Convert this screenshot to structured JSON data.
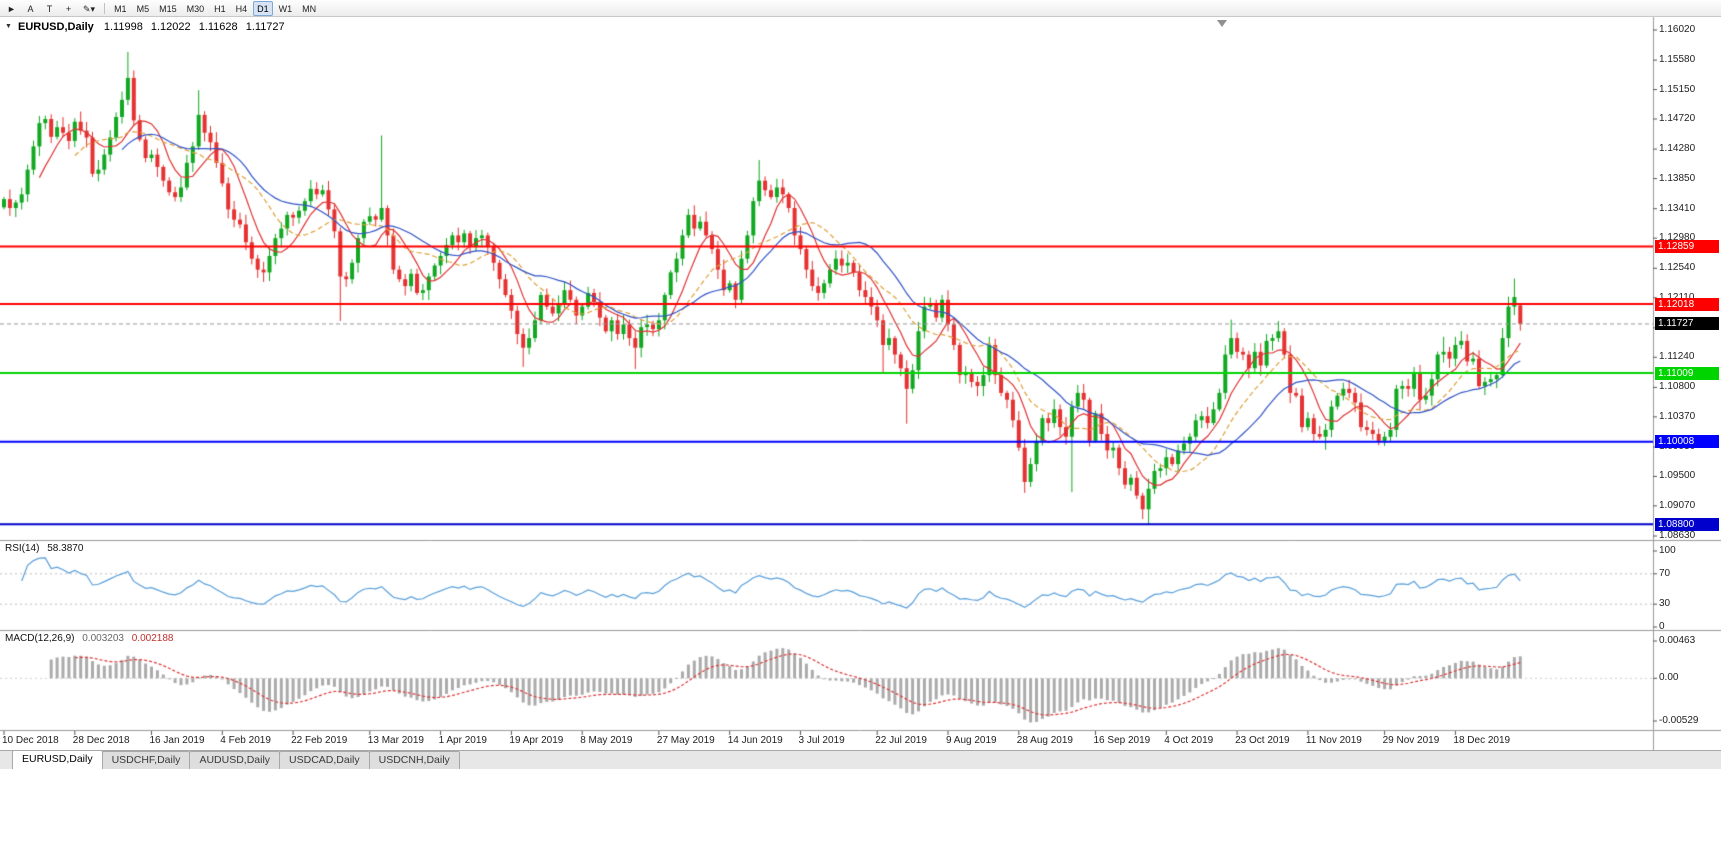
{
  "toolbar": {
    "tools": [
      {
        "id": "cursor-tool-button",
        "glyph": "►"
      },
      {
        "id": "text-tool-button",
        "glyph": "A"
      },
      {
        "id": "textbox-tool-button",
        "glyph": "T"
      },
      {
        "id": "crosshair-tool-button",
        "glyph": "+"
      },
      {
        "id": "draw-tools-button",
        "glyph": "✎▾"
      }
    ],
    "timeframes": [
      "M1",
      "M5",
      "M15",
      "M30",
      "H1",
      "H4",
      "D1",
      "W1",
      "MN"
    ],
    "active_timeframe": "D1"
  },
  "chart": {
    "title": "EURUSD,Daily",
    "open": "1.11998",
    "high": "1.12022",
    "low": "1.11628",
    "close": "1.11727"
  },
  "rsi": {
    "name": "RSI(14)",
    "value": "58.3870",
    "period": 14,
    "axis_labels": [
      "100",
      "70",
      "30",
      "0"
    ],
    "levels": [
      70,
      30
    ],
    "color": "#5aa0dc"
  },
  "macd": {
    "name": "MACD(12,26,9)",
    "value_main": "0.003203",
    "value_signal": "0.002188",
    "fast": 12,
    "slow": 26,
    "signal": 9,
    "axis_labels": [
      "0.00463",
      "0.00",
      "-0.00529"
    ],
    "histogram_color": "#ababab",
    "signal_color": "#e03a3a"
  },
  "tabs": [
    {
      "label": "EURUSD,Daily",
      "active": true
    },
    {
      "label": "USDCHF,Daily",
      "active": false
    },
    {
      "label": "AUDUSD,Daily",
      "active": false
    },
    {
      "label": "USDCAD,Daily",
      "active": false
    },
    {
      "label": "USDCNH,Daily",
      "active": false
    }
  ],
  "chart_data": {
    "type": "candlestick",
    "symbol": "EURUSD",
    "timeframe": "Daily",
    "current_ohlc": {
      "open": 1.11998,
      "high": 1.12022,
      "low": 1.11628,
      "close": 1.11727
    },
    "y_axis": {
      "top": 1.1602,
      "bottom": 1.0863,
      "labels": [
        "1.16020",
        "1.15580",
        "1.15150",
        "1.14720",
        "1.14280",
        "1.13850",
        "1.13410",
        "1.12980",
        "1.12540",
        "1.12110",
        "1.11670",
        "1.11240",
        "1.10800",
        "1.10370",
        "1.09930",
        "1.09500",
        "1.09070",
        "1.08630"
      ]
    },
    "x_axis": {
      "labels": [
        "10 Dec 2018",
        "28 Dec 2018",
        "16 Jan 2019",
        "4 Feb 2019",
        "22 Feb 2019",
        "13 Mar 2019",
        "1 Apr 2019",
        "19 Apr 2019",
        "8 May 2019",
        "27 May 2019",
        "14 Jun 2019",
        "3 Jul 2019",
        "22 Jul 2019",
        "9 Aug 2019",
        "28 Aug 2019",
        "16 Sep 2019",
        "4 Oct 2019",
        "23 Oct 2019",
        "11 Nov 2019",
        "29 Nov 2019",
        "18 Dec 2019"
      ]
    },
    "closes": [
      1.1355,
      1.1342,
      1.135,
      1.1362,
      1.1398,
      1.1432,
      1.1466,
      1.1472,
      1.1446,
      1.146,
      1.1452,
      1.144,
      1.1468,
      1.1455,
      1.1445,
      1.1392,
      1.1398,
      1.142,
      1.1445,
      1.1475,
      1.15,
      1.1532,
      1.147,
      1.1442,
      1.1415,
      1.142,
      1.1402,
      1.1382,
      1.1365,
      1.1358,
      1.1372,
      1.1408,
      1.1432,
      1.1478,
      1.1452,
      1.1438,
      1.1408,
      1.1378,
      1.134,
      1.1325,
      1.1318,
      1.1292,
      1.1268,
      1.1252,
      1.1248,
      1.1272,
      1.1298,
      1.1312,
      1.1332,
      1.1328,
      1.1338,
      1.1352,
      1.137,
      1.1362,
      1.1368,
      1.134,
      1.1308,
      1.1242,
      1.1238,
      1.1262,
      1.1298,
      1.1322,
      1.133,
      1.1325,
      1.1342,
      1.1302,
      1.1252,
      1.1238,
      1.1228,
      1.1246,
      1.1218,
      1.1222,
      1.1242,
      1.1258,
      1.1272,
      1.1288,
      1.1302,
      1.1292,
      1.1305,
      1.1285,
      1.1298,
      1.1302,
      1.1285,
      1.1262,
      1.1238,
      1.1215,
      1.1192,
      1.1158,
      1.1138,
      1.1152,
      1.1178,
      1.1215,
      1.1198,
      1.1188,
      1.1202,
      1.1222,
      1.1208,
      1.1185,
      1.1198,
      1.1218,
      1.1205,
      1.1182,
      1.1162,
      1.1178,
      1.1158,
      1.1172,
      1.1152,
      1.1138,
      1.1168,
      1.1172,
      1.1165,
      1.1178,
      1.1215,
      1.1248,
      1.1268,
      1.1302,
      1.1332,
      1.1312,
      1.1322,
      1.1302,
      1.1282,
      1.1252,
      1.1222,
      1.1232,
      1.1208,
      1.1268,
      1.1302,
      1.1352,
      1.1382,
      1.1368,
      1.1358,
      1.1372,
      1.1362,
      1.1342,
      1.1302,
      1.1282,
      1.1252,
      1.1228,
      1.1218,
      1.1232,
      1.1252,
      1.1268,
      1.1258,
      1.1262,
      1.1248,
      1.1222,
      1.1212,
      1.1198,
      1.1178,
      1.1142,
      1.1152,
      1.1128,
      1.1108,
      1.1078,
      1.1105,
      1.1162,
      1.1198,
      1.1202,
      1.1182,
      1.1208,
      1.1172,
      1.1142,
      1.1098,
      1.1102,
      1.1088,
      1.1082,
      1.1098,
      1.1142,
      1.1098,
      1.1072,
      1.1062,
      1.1032,
      1.0992,
      1.0942,
      1.0968,
      1.1002,
      1.1035,
      1.1028,
      1.1048,
      1.1022,
      1.1008,
      1.1052,
      1.1072,
      1.1062,
      1.1002,
      1.1042,
      1.1012,
      1.0988,
      1.0992,
      1.0962,
      1.0938,
      1.0948,
      1.0922,
      1.0902,
      1.0932,
      1.0958,
      1.0962,
      1.0978,
      1.0968,
      1.0988,
      1.0998,
      1.1008,
      1.1032,
      1.1038,
      1.1028,
      1.1048,
      1.1072,
      1.1128,
      1.1152,
      1.1132,
      1.1128,
      1.1108,
      1.1132,
      1.1112,
      1.1148,
      1.1152,
      1.1162,
      1.1128,
      1.1072,
      1.1068,
      1.1022,
      1.1035,
      1.1012,
      1.1008,
      1.1018,
      1.1052,
      1.1068,
      1.1078,
      1.1072,
      1.1058,
      1.1022,
      1.1018,
      1.1012,
      1.1002,
      1.1008,
      1.1018,
      1.1078,
      1.1082,
      1.1078,
      1.1102,
      1.1062,
      1.1068,
      1.1092,
      1.1128,
      1.1132,
      1.1122,
      1.1142,
      1.1148,
      1.1118,
      1.1122,
      1.1082,
      1.1088,
      1.1092,
      1.1098,
      1.1152,
      1.1198,
      1.1212,
      1.1173
    ],
    "wick_overrides": {
      "21": {
        "h": 1.157
      },
      "33": {
        "h": 1.1514
      },
      "44": {
        "l": 1.1234
      },
      "57": {
        "l": 1.1177
      },
      "64": {
        "h": 1.1448
      },
      "88": {
        "l": 1.111
      },
      "107": {
        "l": 1.1107
      },
      "128": {
        "h": 1.1412
      },
      "149": {
        "l": 1.1101
      },
      "153": {
        "l": 1.1027
      },
      "173": {
        "l": 1.0926
      },
      "181": {
        "l": 1.0927
      },
      "194": {
        "l": 1.0879
      },
      "208": {
        "h": 1.1179
      },
      "224": {
        "l": 1.0989
      },
      "244": {
        "h": 1.1154
      },
      "256": {
        "h": 1.1239
      },
      "257": {
        "o": 1.11998,
        "h": 1.12022,
        "l": 1.11628,
        "c": 1.11727
      }
    },
    "horizontal_lines": [
      {
        "price": 1.12859,
        "label": "1.12859",
        "color": "#ff0000"
      },
      {
        "price": 1.12018,
        "label": "1.12018",
        "color": "#ff0000"
      },
      {
        "price": 1.11009,
        "label": "1.11009",
        "color": "#00d400"
      },
      {
        "price": 1.10008,
        "label": "1.10008",
        "color": "#0000ff"
      },
      {
        "price": 1.088,
        "label": "1.08800",
        "color": "#0000cd"
      }
    ],
    "bid_line": {
      "price": 1.11727,
      "label": "1.11727",
      "line_color": "#9a9a9a",
      "tag_color": "#000000"
    },
    "moving_averages": [
      {
        "period": 7,
        "color": "#e03434",
        "dash": false
      },
      {
        "period": 13,
        "color": "#dfa23b",
        "dash": true
      },
      {
        "period": 21,
        "color": "#3355c8",
        "dash": false
      }
    ],
    "candle_colors": {
      "up": "#12a822",
      "down": "#e63232"
    }
  }
}
